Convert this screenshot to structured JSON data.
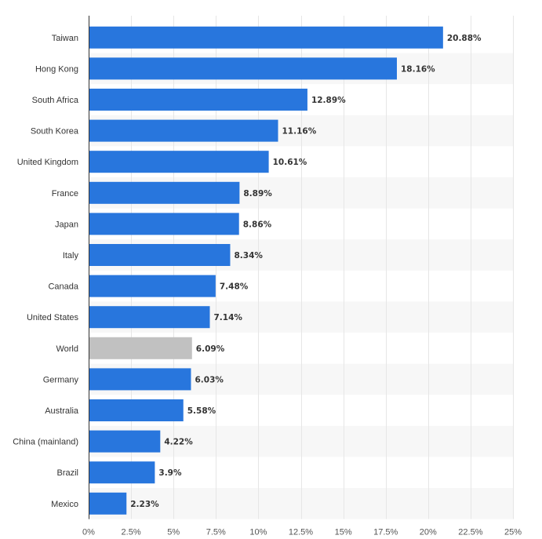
{
  "chart_data": {
    "type": "bar",
    "orientation": "horizontal",
    "title": "",
    "xlabel": "",
    "ylabel": "",
    "categories": [
      "Taiwan",
      "Hong Kong",
      "South Africa",
      "South Korea",
      "United Kingdom",
      "France",
      "Japan",
      "Italy",
      "Canada",
      "United States",
      "World",
      "Germany",
      "Australia",
      "China (mainland)",
      "Brazil",
      "Mexico"
    ],
    "values": [
      20.88,
      18.16,
      12.89,
      11.16,
      10.61,
      8.89,
      8.86,
      8.34,
      7.48,
      7.14,
      6.09,
      6.03,
      5.58,
      4.22,
      3.9,
      2.23
    ],
    "value_labels": [
      "20.88%",
      "18.16%",
      "12.89%",
      "11.16%",
      "10.61%",
      "8.89%",
      "8.86%",
      "8.34%",
      "7.48%",
      "7.14%",
      "6.09%",
      "6.03%",
      "5.58%",
      "4.22%",
      "3.9%",
      "2.23%"
    ],
    "highlight_category": "World",
    "xlim": [
      0,
      25
    ],
    "x_ticks": [
      0,
      2.5,
      5,
      7.5,
      10,
      12.5,
      15,
      17.5,
      20,
      22.5,
      25
    ],
    "x_tick_labels": [
      "0%",
      "2.5%",
      "5%",
      "7.5%",
      "10%",
      "12.5%",
      "15%",
      "17.5%",
      "20%",
      "22.5%",
      "25%"
    ],
    "grid": true,
    "legend": "none",
    "colors": {
      "bar": "#2876dd",
      "highlight_bar": "#c1c1c1",
      "alt_row": "#f7f7f7",
      "grid": "#e6e6e6",
      "axis": "#333333",
      "text": "#333333"
    }
  }
}
